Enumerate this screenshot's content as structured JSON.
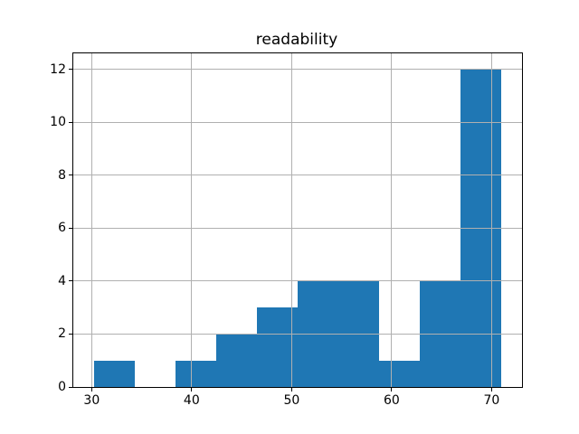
{
  "chart_data": {
    "type": "bar",
    "subtype": "histogram",
    "title": "readability",
    "bin_edges": [
      30.2,
      34.28,
      38.36,
      42.44,
      46.52,
      50.6,
      54.68,
      58.76,
      62.84,
      66.92,
      71.0
    ],
    "counts": [
      1,
      0,
      1,
      2,
      3,
      4,
      4,
      1,
      4,
      12
    ],
    "xticks": [
      30,
      40,
      50,
      60,
      70
    ],
    "yticks": [
      0,
      2,
      4,
      6,
      8,
      10,
      12
    ],
    "xlim": [
      28.16,
      73.04
    ],
    "ylim": [
      0,
      12.6
    ],
    "xlabel": "",
    "ylabel": "",
    "grid": true,
    "legend": false,
    "bar_color": "#1f77b4",
    "grid_color": "#b0b0b0",
    "spine_color": "#000000",
    "text_color": "#000000",
    "background_color": "#ffffff"
  }
}
